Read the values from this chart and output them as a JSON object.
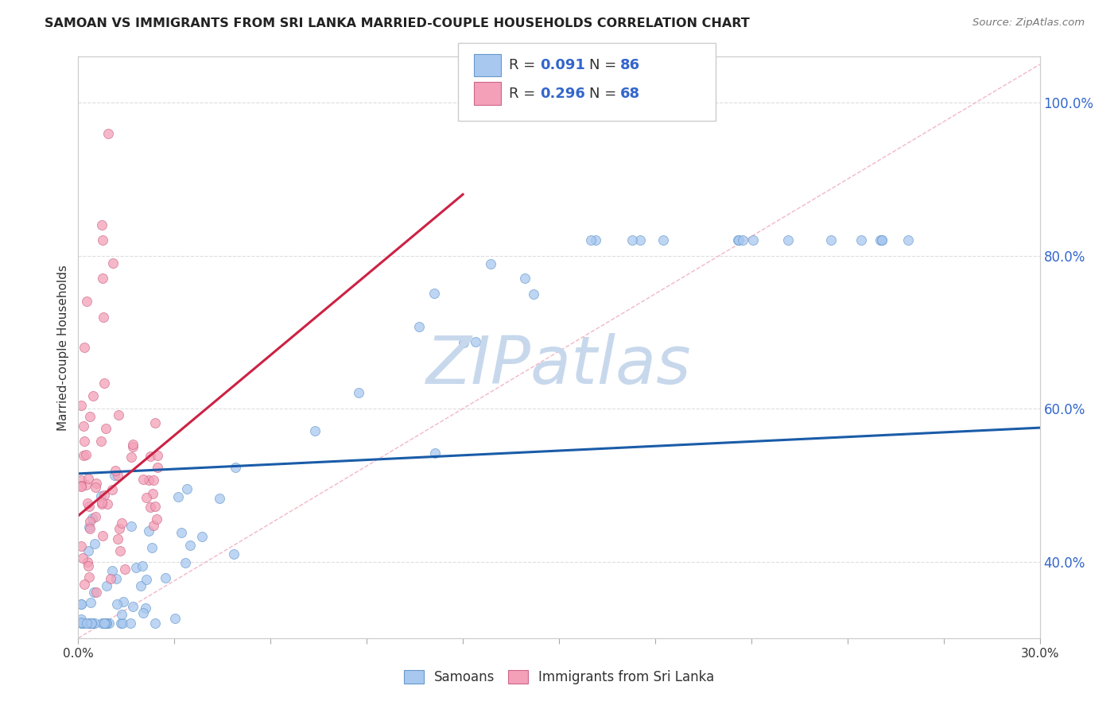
{
  "title": "SAMOAN VS IMMIGRANTS FROM SRI LANKA MARRIED-COUPLE HOUSEHOLDS CORRELATION CHART",
  "source": "Source: ZipAtlas.com",
  "ylabel": "Married-couple Households",
  "right_yticks": [
    "100.0%",
    "80.0%",
    "60.0%",
    "40.0%"
  ],
  "right_ytick_vals": [
    1.0,
    0.8,
    0.6,
    0.4
  ],
  "samoans_color": "#A8C8F0",
  "sri_lanka_color": "#F4A0B8",
  "samoans_edge_color": "#6699CC",
  "sri_lanka_edge_color": "#CC6688",
  "samoans_trend_color": "#1A5CA8",
  "sri_lanka_trend_color": "#CC2244",
  "diag_color": "#F0B0C0",
  "watermark": "ZIPatlas",
  "watermark_color": "#C8D8EC",
  "background_color": "#FFFFFF",
  "xlim": [
    0.0,
    0.3
  ],
  "ylim": [
    0.3,
    1.06
  ],
  "legend_R1": "0.091",
  "legend_N1": "86",
  "legend_R2": "0.296",
  "legend_N2": "68",
  "legend_text_color": "#3366CC",
  "legend_R2_color": "#3366CC",
  "legend_N2_color": "#3366CC",
  "title_color": "#222222",
  "source_color": "#777777",
  "ytick_color": "#3366CC",
  "xtick_color": "#333333",
  "grid_color": "#DDDDDD",
  "ylabel_color": "#333333"
}
